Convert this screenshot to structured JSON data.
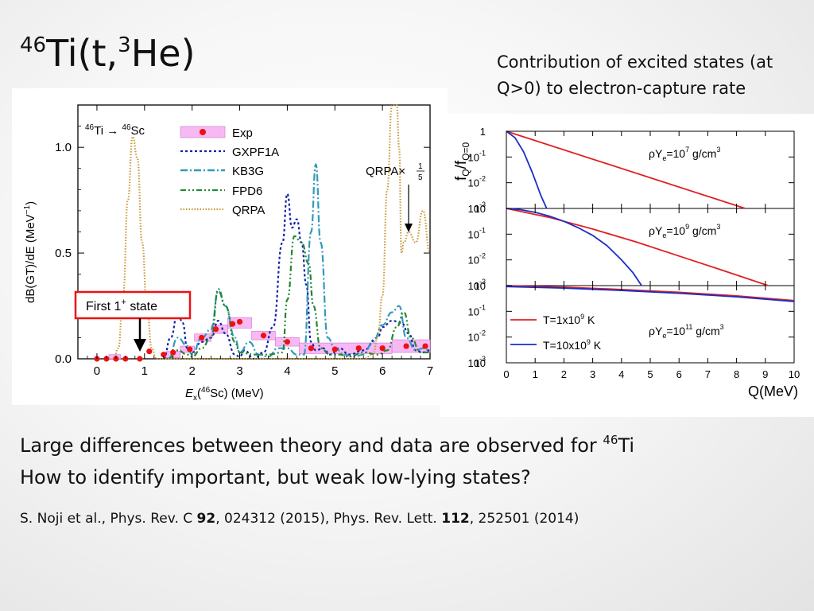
{
  "title": {
    "pre": "46",
    "mid": "Ti(t,",
    "sup2": "3",
    "post": "He)"
  },
  "right_caption": {
    "line1": "Contribution of excited states (at",
    "line2": "Q>0) to electron-capture rate"
  },
  "body": {
    "line1_text": "Large differences between theory and data are observed for ",
    "line1_sup": "46",
    "line1_end": "Ti",
    "line2": "How to identify important, but weak low-lying states?"
  },
  "citation": {
    "a": "S. Noji et al., Phys. Rev. C ",
    "b": "92",
    "c": ", 024312 (2015), Phys. Rev. Lett. ",
    "d": "112",
    "e": ", 252501 (2014)"
  },
  "left_chart_text": {
    "reaction_a": "46",
    "reaction_b": "Ti",
    "reaction_c": " → ",
    "reaction_d": "46",
    "reaction_e": "Sc",
    "qrpa_scale_label": "QRPA×",
    "qrpa_scale_num": "1",
    "qrpa_scale_den": "5",
    "first_state_label": "First 1",
    "first_state_sup": "+",
    "first_state_end": " state",
    "ylabel_a": "dB(GT)/dE (MeV",
    "ylabel_sup": "−1",
    "ylabel_b": ")",
    "xlabel_a": "E",
    "xlabel_sub": "x",
    "xlabel_b": "(",
    "xlabel_sup": "46",
    "xlabel_c": "Sc) (MeV)"
  },
  "right_chart_text": {
    "ylabel": "f",
    "ylabel_sub1": "Q",
    "ylabel_slash": "/f",
    "ylabel_sub2": "Q=0",
    "xlabel": "Q(MeV)",
    "panel_labels": [
      "ρY",
      "ρY",
      "ρY"
    ],
    "density_values": [
      "7",
      "9",
      "11"
    ],
    "legend_t1": "T=1x10",
    "legend_t1_sup": "9",
    "legend_t1_unit": " K",
    "legend_t2": "T=10x10",
    "legend_t2_sup": "9",
    "legend_t2_unit": " K"
  },
  "chart_data": [
    {
      "type": "line",
      "title": "",
      "xlabel": "Ex(46Sc) (MeV)",
      "ylabel": "dB(GT)/dE (MeV^-1)",
      "xlim": [
        -0.4,
        7.0
      ],
      "ylim": [
        0,
        1.2
      ],
      "x_ticks": [
        0,
        1,
        2,
        3,
        4,
        5,
        6,
        7
      ],
      "y_ticks": [
        0.0,
        0.5,
        1.0
      ],
      "y_tick_labels": [
        "0.0",
        "0.5",
        "1.0"
      ],
      "legend": [
        "Exp",
        "GXPF1A",
        "KB3G",
        "FPD6",
        "QRPA"
      ],
      "colors": {
        "exp": "#ee1111",
        "exp_band": "#f7b9f4",
        "gxpf1a": "#1122aa",
        "kb3g": "#3399bb",
        "fpd6": "#228833",
        "qrpa": "#c8993a",
        "box": "#ee1111"
      },
      "exp_points": [
        {
          "x": 0.0,
          "y": 0.0
        },
        {
          "x": 0.2,
          "y": 0.0
        },
        {
          "x": 0.4,
          "y": 0.0
        },
        {
          "x": 0.6,
          "y": 0.0
        },
        {
          "x": 0.9,
          "y": 0.0
        },
        {
          "x": 1.1,
          "y": 0.035
        },
        {
          "x": 1.4,
          "y": 0.02
        },
        {
          "x": 1.6,
          "y": 0.03
        },
        {
          "x": 1.95,
          "y": 0.045
        },
        {
          "x": 2.2,
          "y": 0.1
        },
        {
          "x": 2.5,
          "y": 0.14
        },
        {
          "x": 2.85,
          "y": 0.165
        },
        {
          "x": 3.0,
          "y": 0.175
        },
        {
          "x": 3.5,
          "y": 0.11
        },
        {
          "x": 4.0,
          "y": 0.08
        },
        {
          "x": 4.5,
          "y": 0.05
        },
        {
          "x": 5.0,
          "y": 0.045
        },
        {
          "x": 5.5,
          "y": 0.05
        },
        {
          "x": 6.0,
          "y": 0.05
        },
        {
          "x": 6.5,
          "y": 0.06
        },
        {
          "x": 6.9,
          "y": 0.06
        }
      ],
      "exp_bands": [
        {
          "x0": 0.25,
          "x1": 0.5,
          "y": 0.01,
          "h": 0.02
        },
        {
          "x0": 1.45,
          "x1": 1.75,
          "y": 0.02,
          "h": 0.03
        },
        {
          "x0": 1.75,
          "x1": 2.05,
          "y": 0.045,
          "h": 0.03
        },
        {
          "x0": 2.05,
          "x1": 2.4,
          "y": 0.1,
          "h": 0.035
        },
        {
          "x0": 2.4,
          "x1": 2.75,
          "y": 0.14,
          "h": 0.04
        },
        {
          "x0": 2.75,
          "x1": 3.25,
          "y": 0.17,
          "h": 0.05
        },
        {
          "x0": 3.25,
          "x1": 3.75,
          "y": 0.11,
          "h": 0.04
        },
        {
          "x0": 3.75,
          "x1": 4.25,
          "y": 0.08,
          "h": 0.04
        },
        {
          "x0": 4.25,
          "x1": 6.2,
          "y": 0.05,
          "h": 0.05
        },
        {
          "x0": 6.2,
          "x1": 7.0,
          "y": 0.06,
          "h": 0.06
        }
      ],
      "series": [
        {
          "name": "GXPF1A",
          "style": "dot",
          "x": [
            1.4,
            1.55,
            1.7,
            1.8,
            1.9,
            2.0,
            2.2,
            2.4,
            2.55,
            2.7,
            2.9,
            3.0,
            3.1,
            3.3,
            3.5,
            3.7,
            3.9,
            4.0,
            4.1,
            4.2,
            4.3,
            4.4,
            4.5,
            4.6,
            4.75,
            4.9,
            5.1,
            5.3,
            5.6,
            5.9,
            6.0,
            6.2,
            6.4,
            6.55,
            6.7,
            6.85,
            7.0
          ],
          "y": [
            0.0,
            0.1,
            0.22,
            0.17,
            0.05,
            0.03,
            0.08,
            0.1,
            0.18,
            0.12,
            0.02,
            0.01,
            0.04,
            0.0,
            0.03,
            0.15,
            0.55,
            0.78,
            0.62,
            0.66,
            0.55,
            0.35,
            0.08,
            0.04,
            0.05,
            0.02,
            0.05,
            0.02,
            0.04,
            0.1,
            0.15,
            0.18,
            0.17,
            0.12,
            0.04,
            0.03,
            0.04
          ]
        },
        {
          "name": "KB3G",
          "style": "dashdot",
          "x": [
            1.5,
            1.7,
            1.9,
            2.0,
            2.2,
            2.4,
            2.55,
            2.7,
            2.9,
            3.0,
            3.2,
            3.4,
            3.6,
            3.8,
            4.0,
            4.2,
            4.35,
            4.5,
            4.6,
            4.7,
            4.85,
            5.0,
            5.2,
            5.4,
            5.6,
            5.8,
            6.0,
            6.2,
            6.35,
            6.5,
            6.7,
            6.85,
            7.0
          ],
          "y": [
            0.0,
            0.1,
            0.06,
            0.02,
            0.1,
            0.14,
            0.32,
            0.25,
            0.1,
            0.03,
            0.08,
            0.02,
            0.01,
            0.05,
            0.05,
            0.02,
            0.02,
            0.6,
            0.92,
            0.55,
            0.1,
            0.05,
            0.02,
            0.01,
            0.02,
            0.08,
            0.16,
            0.22,
            0.25,
            0.1,
            0.04,
            0.05,
            0.04
          ]
        },
        {
          "name": "FPD6",
          "style": "dashdotdot",
          "x": [
            1.5,
            1.7,
            1.9,
            2.0,
            2.2,
            2.4,
            2.55,
            2.7,
            2.9,
            3.0,
            3.3,
            3.6,
            3.9,
            4.0,
            4.15,
            4.3,
            4.45,
            4.55,
            4.7,
            4.9,
            5.1,
            5.3,
            5.6,
            5.9,
            6.1,
            6.3,
            6.45,
            6.6,
            6.8,
            7.0
          ],
          "y": [
            0.0,
            0.04,
            0.02,
            0.01,
            0.05,
            0.1,
            0.33,
            0.25,
            0.08,
            0.03,
            0.02,
            0.02,
            0.03,
            0.28,
            0.58,
            0.55,
            0.45,
            0.25,
            0.05,
            0.02,
            0.02,
            0.01,
            0.03,
            0.02,
            0.04,
            0.15,
            0.22,
            0.1,
            0.03,
            0.03
          ]
        },
        {
          "name": "QRPA",
          "style": "dotted",
          "x": [
            0.35,
            0.45,
            0.55,
            0.65,
            0.75,
            0.85,
            0.95,
            1.05,
            1.15,
            1.25,
            1.35,
            1.45,
            1.6,
            2.0,
            3.0,
            4.0,
            5.0,
            5.6,
            5.8,
            5.9,
            6.0,
            6.1,
            6.2,
            6.3,
            6.35,
            6.4,
            6.45,
            6.55,
            6.7,
            6.85,
            7.0
          ],
          "y": [
            0.0,
            0.05,
            0.3,
            0.75,
            1.05,
            0.95,
            0.55,
            0.25,
            0.05,
            0.0,
            0.0,
            0.0,
            0.0,
            0.0,
            0.0,
            0.0,
            0.0,
            0.0,
            0.02,
            0.1,
            0.3,
            0.8,
            1.3,
            1.3,
            1.0,
            0.5,
            0.55,
            0.6,
            0.55,
            0.7,
            0.5
          ]
        }
      ]
    },
    {
      "type": "line",
      "title": "",
      "xlabel": "Q(MeV)",
      "ylabel": "fQ/fQ=0",
      "xlim": [
        0,
        10
      ],
      "x_ticks": [
        0,
        1,
        2,
        3,
        4,
        5,
        6,
        7,
        8,
        9,
        10
      ],
      "y_scale": "log",
      "ylim_log10": [
        -3,
        0
      ],
      "legend": [
        "T=1x10^9 K",
        "T=10x10^9 K"
      ],
      "colors": {
        "t1": "#e02020",
        "t10": "#1a2ec8"
      },
      "panels": [
        {
          "label": "ρYe=10^7 g/cm^3",
          "series": [
            {
              "name": "T=1x10^9 K",
              "x": [
                0,
                8.3
              ],
              "log10_y": [
                0,
                -3.0
              ]
            },
            {
              "name": "T=10x10^9 K",
              "x": [
                0,
                0.3,
                0.6,
                0.9,
                1.2,
                1.4
              ],
              "log10_y": [
                0,
                -0.25,
                -0.8,
                -1.6,
                -2.5,
                -3.0
              ]
            }
          ]
        },
        {
          "label": "ρYe=10^9 g/cm^3",
          "series": [
            {
              "name": "T=1x10^9 K",
              "x": [
                0,
                1.5,
                3,
                4.5,
                6,
                7.5,
                9.1
              ],
              "log10_y": [
                0,
                -0.35,
                -0.8,
                -1.3,
                -1.85,
                -2.4,
                -3.0
              ]
            },
            {
              "name": "T=10x10^9 K",
              "x": [
                0,
                0.5,
                1,
                1.5,
                2,
                2.5,
                3,
                3.5,
                4,
                4.4,
                4.7
              ],
              "log10_y": [
                0,
                -0.05,
                -0.15,
                -0.3,
                -0.5,
                -0.75,
                -1.05,
                -1.45,
                -2.0,
                -2.5,
                -3.0
              ]
            }
          ]
        },
        {
          "label": "ρYe=10^11 g/cm^3",
          "series": [
            {
              "name": "T=1x10^9 K",
              "x": [
                0,
                2,
                4,
                6,
                8,
                10
              ],
              "log10_y": [
                0,
                -0.06,
                -0.15,
                -0.26,
                -0.4,
                -0.58
              ]
            },
            {
              "name": "T=10x10^9 K",
              "x": [
                0,
                2,
                4,
                6,
                8,
                10
              ],
              "log10_y": [
                0,
                -0.06,
                -0.15,
                -0.26,
                -0.4,
                -0.58
              ]
            }
          ]
        }
      ]
    }
  ]
}
